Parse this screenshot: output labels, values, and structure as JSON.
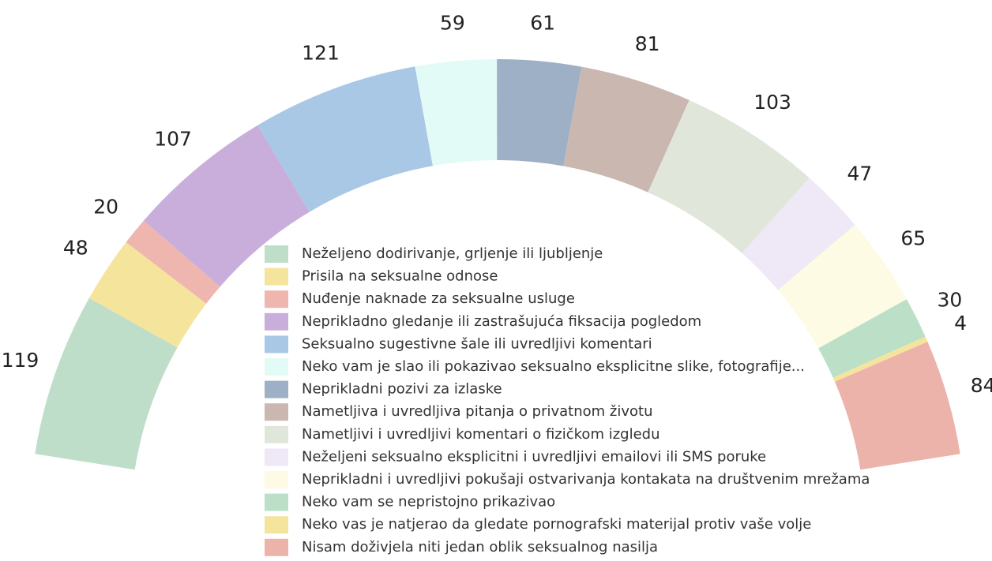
{
  "chart_data": {
    "type": "pie",
    "categories": [
      "Neželjeno dodirivanje, grljenje ili ljubljenje",
      "Prisila na seksualne odnose",
      "Nuđenje naknade za seksualne usluge",
      "Neprikladno gledanje ili zastrašujuća fiksacija pogledom",
      "Seksualno sugestivne šale ili uvredljivi komentari",
      "Neko vam je slao ili pokazivao seksualno eksplicitne slike, fotografije...",
      "Neprikladni pozivi za izlaske",
      "Nametljiva i uvredljiva pitanja o privatnom životu",
      "Nametljivi i uvredljivi komentari o fizičkom izgledu",
      "Neželjeni seksualno eksplicitni i uvredljivi emailovi ili SMS poruke",
      "Neprikladni i uvredljivi pokušaji ostvarivanja kontakata na društvenim mrežama",
      "Neko vam se nepristojno prikazivao",
      "Neko vas je natjerao da gledate pornografski materijal protiv vaše volje",
      "Nisam doživjela niti jedan oblik seksualnog nasilja"
    ],
    "values": [
      119,
      48,
      20,
      107,
      121,
      59,
      61,
      81,
      103,
      47,
      65,
      30,
      4,
      84
    ],
    "colors": [
      "#bfdec9",
      "#f5e49c",
      "#eeb6ae",
      "#c9aedc",
      "#a8c8e6",
      "#e3fbf7",
      "#9eb0c6",
      "#c9b7b0",
      "#e0e7da",
      "#efe8f6",
      "#fdfbe3",
      "#bcdfc8",
      "#f5e49c",
      "#ecb3ab"
    ]
  }
}
